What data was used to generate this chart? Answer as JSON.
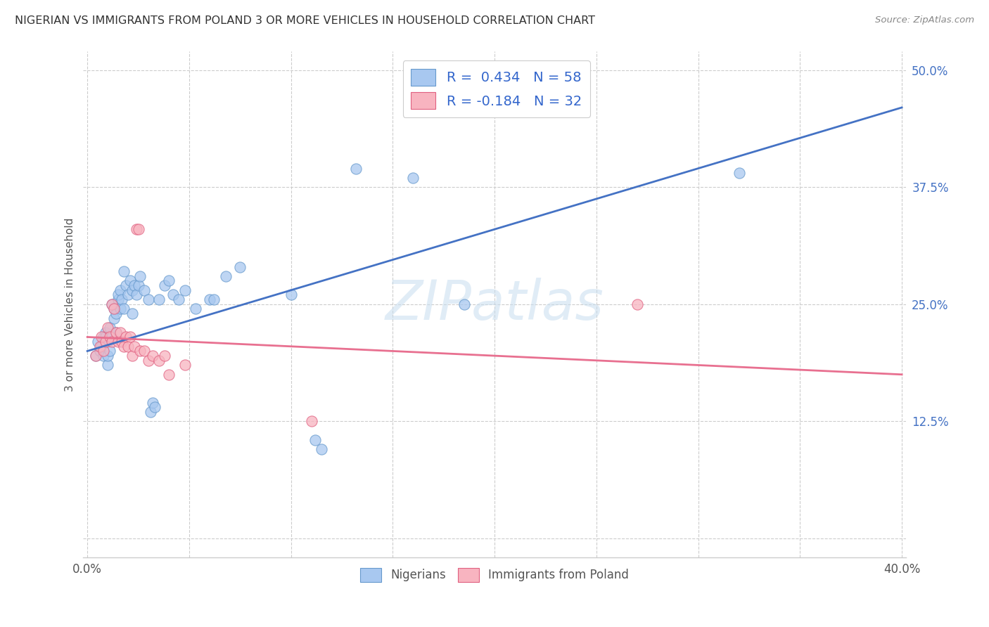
{
  "title": "NIGERIAN VS IMMIGRANTS FROM POLAND 3 OR MORE VEHICLES IN HOUSEHOLD CORRELATION CHART",
  "source": "Source: ZipAtlas.com",
  "ylabel": "3 or more Vehicles in Household",
  "xlim": [
    -0.002,
    0.402
  ],
  "ylim": [
    -0.02,
    0.52
  ],
  "xticks": [
    0.0,
    0.05,
    0.1,
    0.15,
    0.2,
    0.25,
    0.3,
    0.35,
    0.4
  ],
  "yticks": [
    0.0,
    0.125,
    0.25,
    0.375,
    0.5
  ],
  "xtick_labels": [
    "0.0%",
    "",
    "",
    "",
    "",
    "",
    "",
    "",
    "40.0%"
  ],
  "ytick_labels": [
    "",
    "12.5%",
    "25.0%",
    "37.5%",
    "50.0%"
  ],
  "legend_blue_label": "R =  0.434   N = 58",
  "legend_pink_label": "R = -0.184   N = 32",
  "bottom_legend_blue": "Nigerians",
  "bottom_legend_pink": "Immigrants from Poland",
  "blue_fill": "#A8C8F0",
  "pink_fill": "#F8B4C0",
  "blue_edge": "#6699CC",
  "pink_edge": "#E06080",
  "line_blue": "#4472C4",
  "line_pink": "#E87090",
  "watermark": "ZIPatlas",
  "blue_scatter": [
    [
      0.004,
      0.195
    ],
    [
      0.005,
      0.21
    ],
    [
      0.006,
      0.2
    ],
    [
      0.007,
      0.205
    ],
    [
      0.008,
      0.215
    ],
    [
      0.008,
      0.195
    ],
    [
      0.009,
      0.22
    ],
    [
      0.009,
      0.215
    ],
    [
      0.01,
      0.185
    ],
    [
      0.01,
      0.195
    ],
    [
      0.01,
      0.21
    ],
    [
      0.011,
      0.2
    ],
    [
      0.011,
      0.225
    ],
    [
      0.012,
      0.215
    ],
    [
      0.012,
      0.25
    ],
    [
      0.013,
      0.235
    ],
    [
      0.013,
      0.245
    ],
    [
      0.014,
      0.22
    ],
    [
      0.014,
      0.24
    ],
    [
      0.015,
      0.255
    ],
    [
      0.015,
      0.26
    ],
    [
      0.016,
      0.265
    ],
    [
      0.016,
      0.245
    ],
    [
      0.017,
      0.255
    ],
    [
      0.018,
      0.245
    ],
    [
      0.018,
      0.285
    ],
    [
      0.019,
      0.27
    ],
    [
      0.02,
      0.26
    ],
    [
      0.021,
      0.275
    ],
    [
      0.022,
      0.265
    ],
    [
      0.022,
      0.24
    ],
    [
      0.023,
      0.27
    ],
    [
      0.024,
      0.26
    ],
    [
      0.025,
      0.27
    ],
    [
      0.026,
      0.28
    ],
    [
      0.028,
      0.265
    ],
    [
      0.03,
      0.255
    ],
    [
      0.031,
      0.135
    ],
    [
      0.032,
      0.145
    ],
    [
      0.033,
      0.14
    ],
    [
      0.035,
      0.255
    ],
    [
      0.038,
      0.27
    ],
    [
      0.04,
      0.275
    ],
    [
      0.042,
      0.26
    ],
    [
      0.045,
      0.255
    ],
    [
      0.048,
      0.265
    ],
    [
      0.053,
      0.245
    ],
    [
      0.06,
      0.255
    ],
    [
      0.062,
      0.255
    ],
    [
      0.068,
      0.28
    ],
    [
      0.075,
      0.29
    ],
    [
      0.1,
      0.26
    ],
    [
      0.112,
      0.105
    ],
    [
      0.115,
      0.095
    ],
    [
      0.132,
      0.395
    ],
    [
      0.16,
      0.385
    ],
    [
      0.185,
      0.25
    ],
    [
      0.32,
      0.39
    ]
  ],
  "pink_scatter": [
    [
      0.004,
      0.195
    ],
    [
      0.006,
      0.205
    ],
    [
      0.007,
      0.215
    ],
    [
      0.008,
      0.2
    ],
    [
      0.009,
      0.21
    ],
    [
      0.01,
      0.225
    ],
    [
      0.011,
      0.215
    ],
    [
      0.012,
      0.21
    ],
    [
      0.012,
      0.25
    ],
    [
      0.013,
      0.245
    ],
    [
      0.014,
      0.22
    ],
    [
      0.015,
      0.21
    ],
    [
      0.016,
      0.22
    ],
    [
      0.017,
      0.21
    ],
    [
      0.018,
      0.205
    ],
    [
      0.019,
      0.215
    ],
    [
      0.02,
      0.205
    ],
    [
      0.021,
      0.215
    ],
    [
      0.022,
      0.195
    ],
    [
      0.023,
      0.205
    ],
    [
      0.024,
      0.33
    ],
    [
      0.025,
      0.33
    ],
    [
      0.026,
      0.2
    ],
    [
      0.028,
      0.2
    ],
    [
      0.03,
      0.19
    ],
    [
      0.032,
      0.195
    ],
    [
      0.035,
      0.19
    ],
    [
      0.038,
      0.195
    ],
    [
      0.04,
      0.175
    ],
    [
      0.048,
      0.185
    ],
    [
      0.11,
      0.125
    ],
    [
      0.27,
      0.25
    ]
  ],
  "blue_line_pts": [
    [
      0.0,
      0.2
    ],
    [
      0.4,
      0.46
    ]
  ],
  "pink_line_pts": [
    [
      0.0,
      0.215
    ],
    [
      0.4,
      0.175
    ]
  ]
}
